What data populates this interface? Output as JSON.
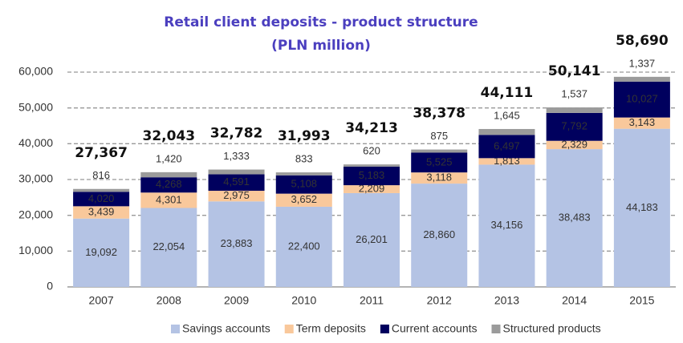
{
  "chart_data": {
    "type": "stacked_bar",
    "title": "Retail client deposits - product structure",
    "subtitle": "(PLN million)",
    "categories": [
      "2007",
      "2008",
      "2009",
      "2010",
      "2011",
      "2012",
      "2013",
      "2014",
      "2015"
    ],
    "series": [
      {
        "name": "Savings accounts",
        "color": "#b4c3e4",
        "label_color": "#333333",
        "values": [
          19092,
          22054,
          23883,
          22400,
          26201,
          28860,
          34156,
          38483,
          44183
        ],
        "value_labels": [
          "19,092",
          "22,054",
          "23,883",
          "22,400",
          "26,201",
          "28,860",
          "34,156",
          "38,483",
          "44,183"
        ]
      },
      {
        "name": "Term deposits",
        "color": "#f9c89b",
        "label_color": "#333333",
        "values": [
          3439,
          4301,
          2975,
          3652,
          2209,
          3118,
          1813,
          2329,
          3143
        ],
        "value_labels": [
          "3,439",
          "4,301",
          "2,975",
          "3,652",
          "2,209",
          "3,118",
          "1,813",
          "2,329",
          "3,143"
        ]
      },
      {
        "name": "Current accounts",
        "color": "#00005e",
        "label_color": "#ffffff",
        "values": [
          4020,
          4268,
          4591,
          5108,
          5183,
          5525,
          6497,
          7792,
          10027
        ],
        "value_labels": [
          "4,020",
          "4,268",
          "4,591",
          "5,108",
          "5,183",
          "5,525",
          "6,497",
          "7,792",
          "10,027"
        ]
      },
      {
        "name": "Structured products",
        "color": "#9b9b9b",
        "label_color": "#444444",
        "values": [
          816,
          1420,
          1333,
          833,
          620,
          875,
          1645,
          1537,
          1337
        ],
        "value_labels": [
          "816",
          "1,420",
          "1,333",
          "833",
          "620",
          "875",
          "1,645",
          "1,537",
          "1,337"
        ]
      }
    ],
    "totals": [
      27367,
      32043,
      32782,
      31993,
      34213,
      38378,
      44111,
      50141,
      58690
    ],
    "total_labels": [
      "27,367",
      "32,043",
      "32,782",
      "31,993",
      "34,213",
      "38,378",
      "44,111",
      "50,141",
      "58,690"
    ],
    "ylim": [
      0,
      60000
    ],
    "yticks": [
      0,
      {
        "value": 10000,
        "label": "10,000"
      },
      {
        "value": 20000,
        "label": "20,000"
      },
      {
        "value": 30000,
        "label": "30,000"
      },
      {
        "value": 40000,
        "label": "40,000"
      },
      {
        "value": 50000,
        "label": "50,000"
      },
      {
        "value": 60000,
        "label": "60,000"
      }
    ],
    "grid": true,
    "legend": "bottom"
  }
}
